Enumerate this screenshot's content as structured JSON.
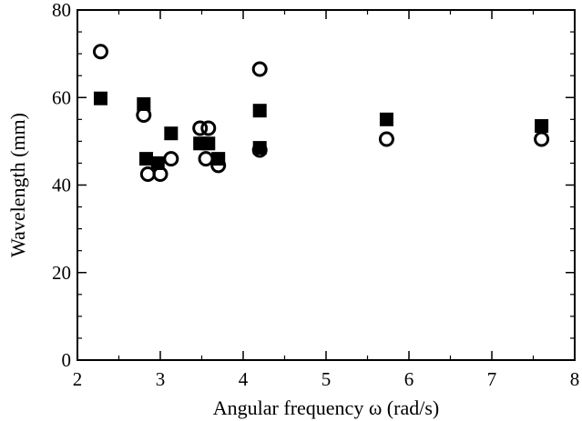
{
  "chart_data": {
    "type": "scatter",
    "title": "",
    "xlabel": "Angular frequency ω (rad/s)",
    "ylabel": "Wavelength (mm)",
    "xlim": [
      2,
      8
    ],
    "ylim": [
      0,
      80
    ],
    "x_ticks": [
      2,
      3,
      4,
      5,
      6,
      7,
      8
    ],
    "y_ticks": [
      0,
      20,
      40,
      60,
      80
    ],
    "grid": false,
    "legend": "none",
    "series": [
      {
        "marker": "filled-square",
        "color": "#000000",
        "points": [
          {
            "x": 2.28,
            "y": 59.8
          },
          {
            "x": 2.8,
            "y": 58.5
          },
          {
            "x": 2.83,
            "y": 46.0
          },
          {
            "x": 2.97,
            "y": 45.0
          },
          {
            "x": 3.13,
            "y": 51.8
          },
          {
            "x": 3.48,
            "y": 49.5
          },
          {
            "x": 3.58,
            "y": 49.5
          },
          {
            "x": 3.7,
            "y": 46.0
          },
          {
            "x": 4.2,
            "y": 57.0
          },
          {
            "x": 4.2,
            "y": 48.5
          },
          {
            "x": 5.73,
            "y": 55.0
          },
          {
            "x": 7.6,
            "y": 53.5
          }
        ]
      },
      {
        "marker": "open-circle",
        "color": "#000000",
        "points": [
          {
            "x": 2.28,
            "y": 70.5
          },
          {
            "x": 2.8,
            "y": 56.0
          },
          {
            "x": 2.85,
            "y": 42.5
          },
          {
            "x": 3.0,
            "y": 42.5
          },
          {
            "x": 3.13,
            "y": 46.0
          },
          {
            "x": 3.48,
            "y": 53.0
          },
          {
            "x": 3.58,
            "y": 53.0
          },
          {
            "x": 3.55,
            "y": 46.0
          },
          {
            "x": 3.7,
            "y": 44.5
          },
          {
            "x": 4.2,
            "y": 66.5
          },
          {
            "x": 4.2,
            "y": 48.0
          },
          {
            "x": 5.73,
            "y": 50.5
          },
          {
            "x": 7.6,
            "y": 50.5
          }
        ]
      }
    ]
  }
}
